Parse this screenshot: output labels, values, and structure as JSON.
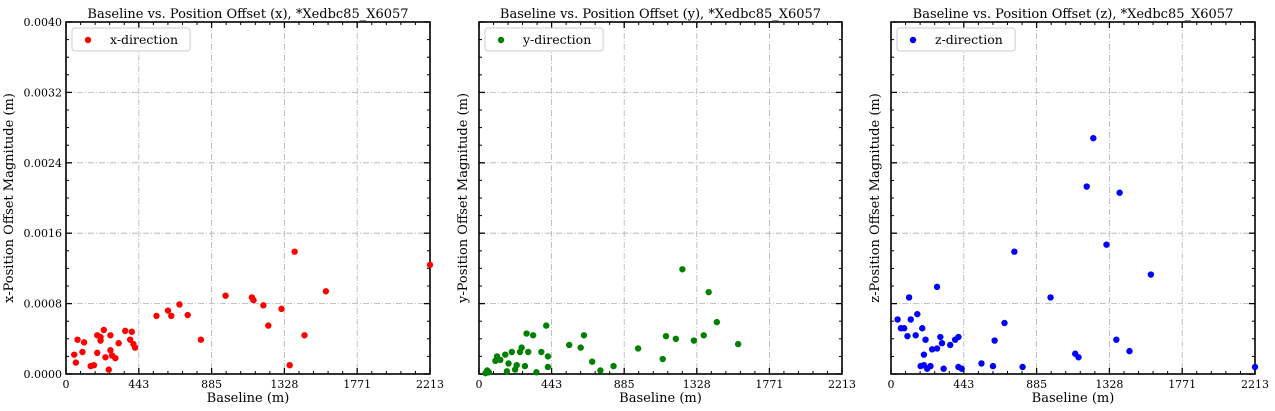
{
  "chart_data": [
    {
      "type": "scatter",
      "title": "Baseline vs. Position Offset (x), *Xedbc85_X6057",
      "xlabel": "Baseline (m)",
      "ylabel": "x-Position Offset Magnitude (m)",
      "xlim": [
        0,
        2213
      ],
      "ylim": [
        0,
        0.004
      ],
      "xticks": [
        "0",
        "443",
        "885",
        "1328",
        "1771",
        "2213"
      ],
      "yticks": [
        "0.0000",
        "0.0008",
        "0.0016",
        "0.0024",
        "0.0032",
        "0.0040"
      ],
      "show_ytick_labels": true,
      "grid": true,
      "legend_position": "top-left",
      "series": [
        {
          "name": "x-direction",
          "color": "#ff0000",
          "points": [
            [
              50,
              0.00022
            ],
            [
              60,
              0.00013
            ],
            [
              70,
              0.00039
            ],
            [
              100,
              0.00025
            ],
            [
              110,
              0.00036
            ],
            [
              150,
              9e-05
            ],
            [
              170,
              0.0001
            ],
            [
              190,
              0.00044
            ],
            [
              190,
              0.00024
            ],
            [
              210,
              0.00042
            ],
            [
              210,
              0.00038
            ],
            [
              230,
              0.0005
            ],
            [
              240,
              0.00019
            ],
            [
              260,
              5e-05
            ],
            [
              270,
              0.00027
            ],
            [
              270,
              0.00044
            ],
            [
              280,
              0.00021
            ],
            [
              300,
              0.00018
            ],
            [
              320,
              0.00035
            ],
            [
              360,
              0.00049
            ],
            [
              390,
              0.00039
            ],
            [
              400,
              0.00048
            ],
            [
              410,
              0.00034
            ],
            [
              420,
              0.0003
            ],
            [
              550,
              0.00066
            ],
            [
              620,
              0.00072
            ],
            [
              640,
              0.00066
            ],
            [
              690,
              0.00079
            ],
            [
              740,
              0.00067
            ],
            [
              820,
              0.00039
            ],
            [
              970,
              0.00089
            ],
            [
              1130,
              0.00087
            ],
            [
              1140,
              0.00084
            ],
            [
              1200,
              0.00078
            ],
            [
              1230,
              0.00055
            ],
            [
              1310,
              0.00074
            ],
            [
              1360,
              0.0001
            ],
            [
              1390,
              0.00139
            ],
            [
              1450,
              0.00044
            ],
            [
              1580,
              0.00094
            ],
            [
              2213,
              0.00124
            ]
          ]
        }
      ]
    },
    {
      "type": "scatter",
      "title": "Baseline vs. Position Offset (y), *Xedbc85_X6057",
      "xlabel": "Baseline (m)",
      "ylabel": "y-Position Offset Magnitude (m)",
      "xlim": [
        0,
        2213
      ],
      "ylim": [
        0,
        0.004
      ],
      "xticks": [
        "0",
        "443",
        "885",
        "1328",
        "1771",
        "2213"
      ],
      "show_ytick_labels": false,
      "grid": true,
      "legend_position": "top-left",
      "series": [
        {
          "name": "y-direction",
          "color": "#008000",
          "points": [
            [
              40,
              1e-05
            ],
            [
              50,
              4e-05
            ],
            [
              60,
              2e-05
            ],
            [
              100,
              0.00015
            ],
            [
              110,
              0.0002
            ],
            [
              130,
              0.00016
            ],
            [
              160,
              0.00022
            ],
            [
              170,
              3e-05
            ],
            [
              180,
              0.00012
            ],
            [
              200,
              0.00025
            ],
            [
              220,
              5e-05
            ],
            [
              230,
              0.0001
            ],
            [
              250,
              0.00025
            ],
            [
              260,
              0.0003
            ],
            [
              280,
              9e-05
            ],
            [
              290,
              0.00046
            ],
            [
              300,
              0.00025
            ],
            [
              330,
              0.00044
            ],
            [
              350,
              2e-05
            ],
            [
              380,
              0.00025
            ],
            [
              410,
              0.00055
            ],
            [
              420,
              0.0002
            ],
            [
              420,
              8e-05
            ],
            [
              550,
              0.00033
            ],
            [
              620,
              0.0003
            ],
            [
              640,
              0.00044
            ],
            [
              690,
              0.00014
            ],
            [
              740,
              4e-05
            ],
            [
              820,
              9e-05
            ],
            [
              970,
              0.00029
            ],
            [
              1120,
              0.00017
            ],
            [
              1140,
              0.00043
            ],
            [
              1200,
              0.0004
            ],
            [
              1240,
              0.00119
            ],
            [
              1310,
              0.00038
            ],
            [
              1370,
              0.00044
            ],
            [
              1400,
              0.00093
            ],
            [
              1450,
              0.00059
            ],
            [
              1580,
              0.00034
            ]
          ]
        }
      ]
    },
    {
      "type": "scatter",
      "title": "Baseline vs. Position Offset (z), *Xedbc85_X6057",
      "xlabel": "Baseline (m)",
      "ylabel": "z-Position Offset Magnitude (m)",
      "xlim": [
        0,
        2213
      ],
      "ylim": [
        0,
        0.004
      ],
      "xticks": [
        "0",
        "443",
        "885",
        "1328",
        "1771",
        "2213"
      ],
      "show_ytick_labels": false,
      "grid": true,
      "legend_position": "top-left",
      "series": [
        {
          "name": "z-direction",
          "color": "#0000ff",
          "points": [
            [
              40,
              0.00062
            ],
            [
              60,
              0.00052
            ],
            [
              80,
              0.00052
            ],
            [
              100,
              0.00043
            ],
            [
              110,
              0.00087
            ],
            [
              120,
              0.00062
            ],
            [
              150,
              0.00044
            ],
            [
              160,
              0.00068
            ],
            [
              180,
              9e-05
            ],
            [
              190,
              0.00052
            ],
            [
              200,
              0.0001
            ],
            [
              200,
              0.00022
            ],
            [
              210,
              0.00039
            ],
            [
              220,
              6e-05
            ],
            [
              240,
              9e-05
            ],
            [
              250,
              0.00028
            ],
            [
              280,
              0.00099
            ],
            [
              280,
              0.00029
            ],
            [
              300,
              0.00042
            ],
            [
              310,
              0.00035
            ],
            [
              320,
              6e-05
            ],
            [
              360,
              0.00033
            ],
            [
              390,
              0.00039
            ],
            [
              410,
              0.00042
            ],
            [
              410,
              8e-05
            ],
            [
              430,
              6e-05
            ],
            [
              550,
              0.00012
            ],
            [
              620,
              9e-05
            ],
            [
              630,
              0.00038
            ],
            [
              690,
              0.00058
            ],
            [
              750,
              0.00139
            ],
            [
              800,
              8e-05
            ],
            [
              970,
              0.00087
            ],
            [
              1120,
              0.00023
            ],
            [
              1140,
              0.00019
            ],
            [
              1190,
              0.00213
            ],
            [
              1230,
              0.00268
            ],
            [
              1310,
              0.00147
            ],
            [
              1370,
              0.00039
            ],
            [
              1390,
              0.00206
            ],
            [
              1450,
              0.00026
            ],
            [
              1580,
              0.00113
            ],
            [
              2213,
              8e-05
            ]
          ]
        }
      ]
    }
  ]
}
